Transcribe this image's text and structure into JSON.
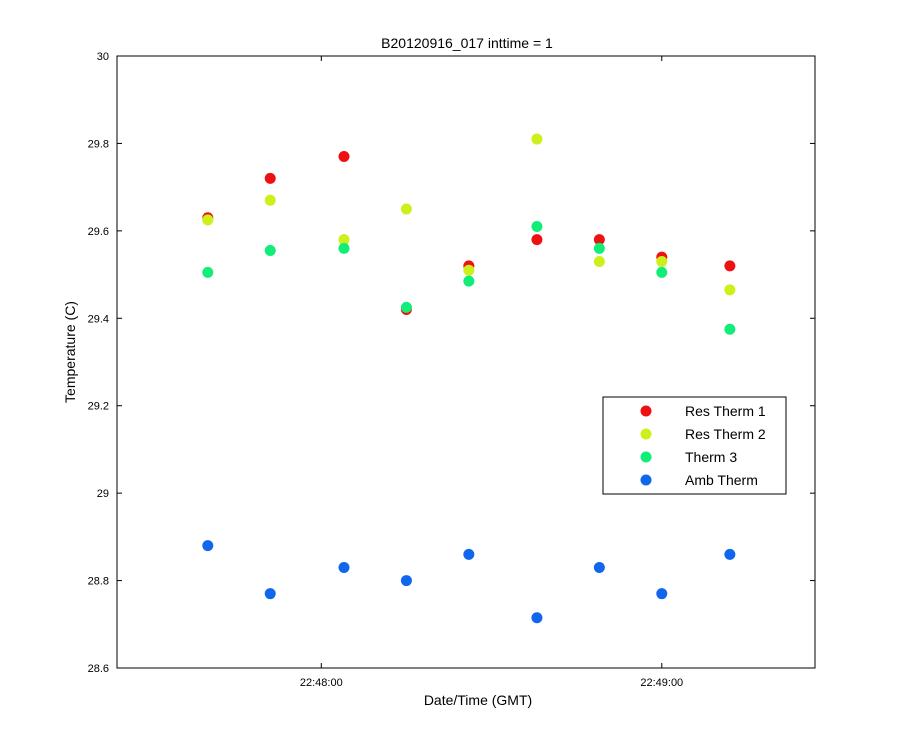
{
  "chart_data": {
    "type": "scatter",
    "title": "B20120916_017 inttime = 1",
    "xlabel": "Date/Time (GMT)",
    "ylabel": "Temperature (C)",
    "ylim": [
      28.6,
      30.0
    ],
    "xlim": [
      "22:47:24",
      "22:49:27"
    ],
    "yticks": [
      28.6,
      28.8,
      29.0,
      29.2,
      29.4,
      29.6,
      29.8,
      30.0
    ],
    "ytick_labels": [
      "28.6",
      "28.8",
      "29",
      "29.2",
      "29.4",
      "29.6",
      "29.8",
      "30"
    ],
    "xticks": [
      "22:48:00",
      "22:49:00"
    ],
    "xtick_labels": [
      "22:48:00",
      "22:49:00"
    ],
    "grid": false,
    "legend_position": "right",
    "x": [
      "22:47:40",
      "22:47:51",
      "22:48:04",
      "22:48:15",
      "22:48:26",
      "22:48:38",
      "22:48:49",
      "22:49:00",
      "22:49:12"
    ],
    "series": [
      {
        "name": "Res Therm 1",
        "color": "#ee1111",
        "values": [
          29.63,
          29.72,
          29.77,
          29.42,
          29.52,
          29.58,
          29.58,
          29.54,
          29.52
        ]
      },
      {
        "name": "Res Therm 2",
        "color": "#ccf01a",
        "values": [
          29.625,
          29.67,
          29.58,
          29.65,
          29.51,
          29.81,
          29.53,
          29.53,
          29.465
        ]
      },
      {
        "name": "Therm 3",
        "color": "#11ee77",
        "values": [
          29.505,
          29.555,
          29.56,
          29.425,
          29.485,
          29.61,
          29.56,
          29.505,
          29.375
        ]
      },
      {
        "name": "Amb Therm",
        "color": "#1166ee",
        "values": [
          28.88,
          28.77,
          28.83,
          28.8,
          28.86,
          28.715,
          28.83,
          28.77,
          28.86
        ]
      }
    ]
  }
}
